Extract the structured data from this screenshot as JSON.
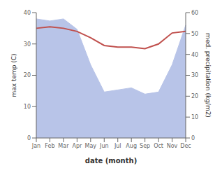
{
  "chart_data": {
    "type": "line",
    "xlabel": "date (month)",
    "ylabel": "max temp (C)",
    "y2label": "med. precipitation (kg/m2)",
    "categories": [
      "Jan",
      "Feb",
      "Mar",
      "Apr",
      "May",
      "Jun",
      "Jul",
      "Aug",
      "Sep",
      "Oct",
      "Nov",
      "Dec"
    ],
    "series": [
      {
        "type": "area",
        "color": "#b8c4e8",
        "axis": "y2",
        "values": [
          57,
          56,
          57,
          52,
          35,
          22,
          23,
          24,
          21,
          22,
          35,
          54
        ]
      },
      {
        "type": "line",
        "color": "#c0504d",
        "values": [
          35.0,
          35.5,
          35.0,
          34.0,
          32.0,
          29.5,
          29.0,
          29.0,
          28.5,
          30.0,
          33.5,
          34.0
        ]
      }
    ],
    "ylim": [
      0,
      40
    ],
    "yticks": [
      0,
      10,
      20,
      30,
      40
    ],
    "y2lim": [
      0,
      60
    ],
    "y2ticks": [
      0,
      10,
      20,
      30,
      40,
      50,
      60
    ],
    "grid": false
  }
}
